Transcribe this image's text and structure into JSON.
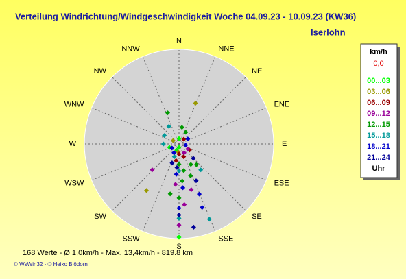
{
  "chart_data": {
    "type": "windrose",
    "title": "Verteilung Windrichtung/Windgeschwindigkeit  Woche 04.09.23 - 10.09.23 (KW36)",
    "subtitle": "Iserlohn",
    "categories": [
      "N",
      "NNE",
      "NE",
      "ENE",
      "E",
      "ESE",
      "SE",
      "SSE",
      "S",
      "SSW",
      "SW",
      "WSW",
      "W",
      "WNW",
      "NW",
      "NNW"
    ],
    "rlim": [
      0,
      14
    ],
    "legend_title": "km/h",
    "calm": "0,0",
    "legend_footer": "Uhr",
    "series": [
      {
        "name": "00...03",
        "color": "#00ff00",
        "dir": [
          180,
          200,
          180,
          0,
          250
        ],
        "r": [
          0.5,
          1,
          13.8,
          0.8,
          1.5
        ]
      },
      {
        "name": "03...06",
        "color": "#999900",
        "dir": [
          22,
          215,
          185,
          300
        ],
        "r": [
          6.5,
          8.4,
          1.2,
          1.0
        ]
      },
      {
        "name": "06...09",
        "color": "#990000",
        "dir": [
          180,
          160,
          190,
          45,
          120
        ],
        "r": [
          1.5,
          2,
          2.5,
          1,
          1.8
        ]
      },
      {
        "name": "09...12",
        "color": "#990099",
        "dir": [
          180,
          226,
          165,
          150,
          185,
          120,
          175
        ],
        "r": [
          12,
          5.5,
          7,
          1.5,
          6,
          1.5,
          9
        ]
      },
      {
        "name": "12...15",
        "color": "#009900",
        "dir": [
          180,
          170,
          160,
          150,
          190,
          340,
          10,
          30,
          140,
          180,
          175
        ],
        "r": [
          3,
          4,
          5,
          3.5,
          7.5,
          4.9,
          2.5,
          2,
          4,
          8,
          5.5
        ]
      },
      {
        "name": "15...18",
        "color": "#009999",
        "dir": [
          158,
          180,
          270,
          300,
          330,
          180,
          140,
          200
        ],
        "r": [
          12,
          11,
          2.3,
          2.5,
          3,
          4,
          5,
          2
        ]
      },
      {
        "name": "18...21",
        "color": "#0000cc",
        "dir": [
          158,
          180,
          185,
          175,
          160,
          210,
          240,
          100,
          60
        ],
        "r": [
          8,
          9.5,
          4.5,
          6.5,
          10,
          1.5,
          1.2,
          1,
          1.5
        ]
      },
      {
        "name": "21...24",
        "color": "#000099",
        "dir": [
          180,
          185,
          155,
          200,
          135,
          170
        ],
        "r": [
          10.5,
          3.5,
          6,
          3,
          3,
          12.5
        ]
      }
    ],
    "footer": "168 Werte   -   Ø 1,0km/h   -   Max. 13,4km/h   -   819.8 km",
    "copyright": "© WsWin32   -   © Heiko Blödorn"
  }
}
